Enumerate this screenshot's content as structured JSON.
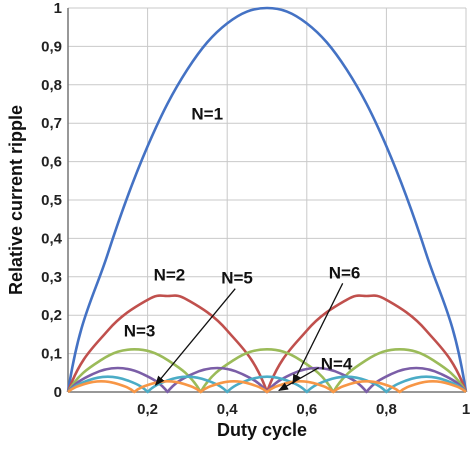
{
  "chart_data": {
    "type": "line",
    "title": "",
    "xlabel": "Duty cycle",
    "ylabel": "Relative current ripple",
    "xlim": [
      0,
      1
    ],
    "ylim": [
      0,
      1
    ],
    "grid": true,
    "legend": "none",
    "x_ticks": [
      {
        "value": 0.2,
        "label": "0,2"
      },
      {
        "value": 0.4,
        "label": "0,4"
      },
      {
        "value": 0.6,
        "label": "0,6"
      },
      {
        "value": 0.8,
        "label": "0,8"
      },
      {
        "value": 1.0,
        "label": "1"
      }
    ],
    "y_ticks": [
      {
        "value": 0,
        "label": "0"
      },
      {
        "value": 0.1,
        "label": "0,1"
      },
      {
        "value": 0.2,
        "label": "0,2"
      },
      {
        "value": 0.3,
        "label": "0,3"
      },
      {
        "value": 0.4,
        "label": "0,4"
      },
      {
        "value": 0.5,
        "label": "0,5"
      },
      {
        "value": 0.6,
        "label": "0,6"
      },
      {
        "value": 0.7,
        "label": "0,7"
      },
      {
        "value": 0.8,
        "label": "0,8"
      },
      {
        "value": 0.9,
        "label": "0,9"
      },
      {
        "value": 1.0,
        "label": "1"
      }
    ],
    "series": [
      {
        "n": 1,
        "color": "#4472c4",
        "x": [
          0,
          0.1,
          0.2,
          0.3,
          0.4,
          0.5,
          0.6,
          0.7,
          0.8,
          0.9,
          1.0
        ],
        "y": [
          0,
          0.36,
          0.64,
          0.84,
          0.96,
          1.0,
          0.96,
          0.84,
          0.64,
          0.36,
          0
        ]
      },
      {
        "n": 2,
        "color": "#c0504d",
        "x": [
          0,
          0.1,
          0.2,
          0.25,
          0.3,
          0.4,
          0.5,
          0.6,
          0.7,
          0.75,
          0.8,
          0.9,
          1.0
        ],
        "y": [
          0,
          0.16,
          0.24,
          0.25,
          0.24,
          0.16,
          0,
          0.16,
          0.24,
          0.25,
          0.24,
          0.16,
          0
        ]
      },
      {
        "n": 3,
        "color": "#9bbb59",
        "x": [
          0,
          0.0833,
          0.1667,
          0.25,
          0.3333,
          0.4167,
          0.5,
          0.5833,
          0.6667,
          0.75,
          0.8333,
          0.9167,
          1.0
        ],
        "y": [
          0,
          0.0833,
          0.1111,
          0.0833,
          0,
          0.0833,
          0.1111,
          0.0833,
          0,
          0.0833,
          0.1111,
          0.0833,
          0
        ]
      },
      {
        "n": 4,
        "color": "#7b5ea7",
        "x": [
          0,
          0.0625,
          0.125,
          0.1875,
          0.25,
          0.3125,
          0.375,
          0.4375,
          0.5,
          0.5625,
          0.625,
          0.6875,
          0.75,
          0.8125,
          0.875,
          0.9375,
          1.0
        ],
        "y": [
          0,
          0.0469,
          0.0625,
          0.0469,
          0,
          0.0469,
          0.0625,
          0.0469,
          0,
          0.0469,
          0.0625,
          0.0469,
          0,
          0.0469,
          0.0625,
          0.0469,
          0
        ]
      },
      {
        "n": 5,
        "color": "#4bacc6",
        "x": [
          0,
          0.05,
          0.1,
          0.15,
          0.2,
          0.25,
          0.3,
          0.35,
          0.4,
          0.45,
          0.5,
          0.55,
          0.6,
          0.65,
          0.7,
          0.75,
          0.8,
          0.85,
          0.9,
          0.95,
          1.0
        ],
        "y": [
          0,
          0.03,
          0.04,
          0.03,
          0,
          0.03,
          0.04,
          0.03,
          0,
          0.03,
          0.04,
          0.03,
          0,
          0.03,
          0.04,
          0.03,
          0,
          0.03,
          0.04,
          0.03,
          0
        ]
      },
      {
        "n": 6,
        "color": "#f79646",
        "x": [
          0,
          0.0417,
          0.0833,
          0.125,
          0.1667,
          0.2083,
          0.25,
          0.2917,
          0.3333,
          0.375,
          0.4167,
          0.4583,
          0.5,
          0.5417,
          0.5833,
          0.625,
          0.6667,
          0.7083,
          0.75,
          0.7917,
          0.8333,
          0.875,
          0.9167,
          0.9583,
          1.0
        ],
        "y": [
          0,
          0.0208,
          0.0278,
          0.0208,
          0,
          0.0208,
          0.0278,
          0.0208,
          0,
          0.0208,
          0.0278,
          0.0208,
          0,
          0.0208,
          0.0278,
          0.0208,
          0,
          0.0208,
          0.0278,
          0.0208,
          0,
          0.0208,
          0.0278,
          0.0208,
          0
        ]
      }
    ],
    "annotations": [
      {
        "text": "N=1",
        "x": 0.31,
        "y": 0.71
      },
      {
        "text": "N=2",
        "x": 0.215,
        "y": 0.29
      },
      {
        "text": "N=3",
        "x": 0.14,
        "y": 0.144
      },
      {
        "text": "N=5",
        "x": 0.385,
        "y": 0.282,
        "arrow_to": [
          0.22,
          0.018
        ]
      },
      {
        "text": "N=6",
        "x": 0.655,
        "y": 0.296,
        "arrow_to": [
          0.565,
          0.022
        ]
      },
      {
        "text": "N=4",
        "x": 0.635,
        "y": 0.058,
        "arrow_to": [
          0.53,
          0.004
        ]
      }
    ]
  }
}
